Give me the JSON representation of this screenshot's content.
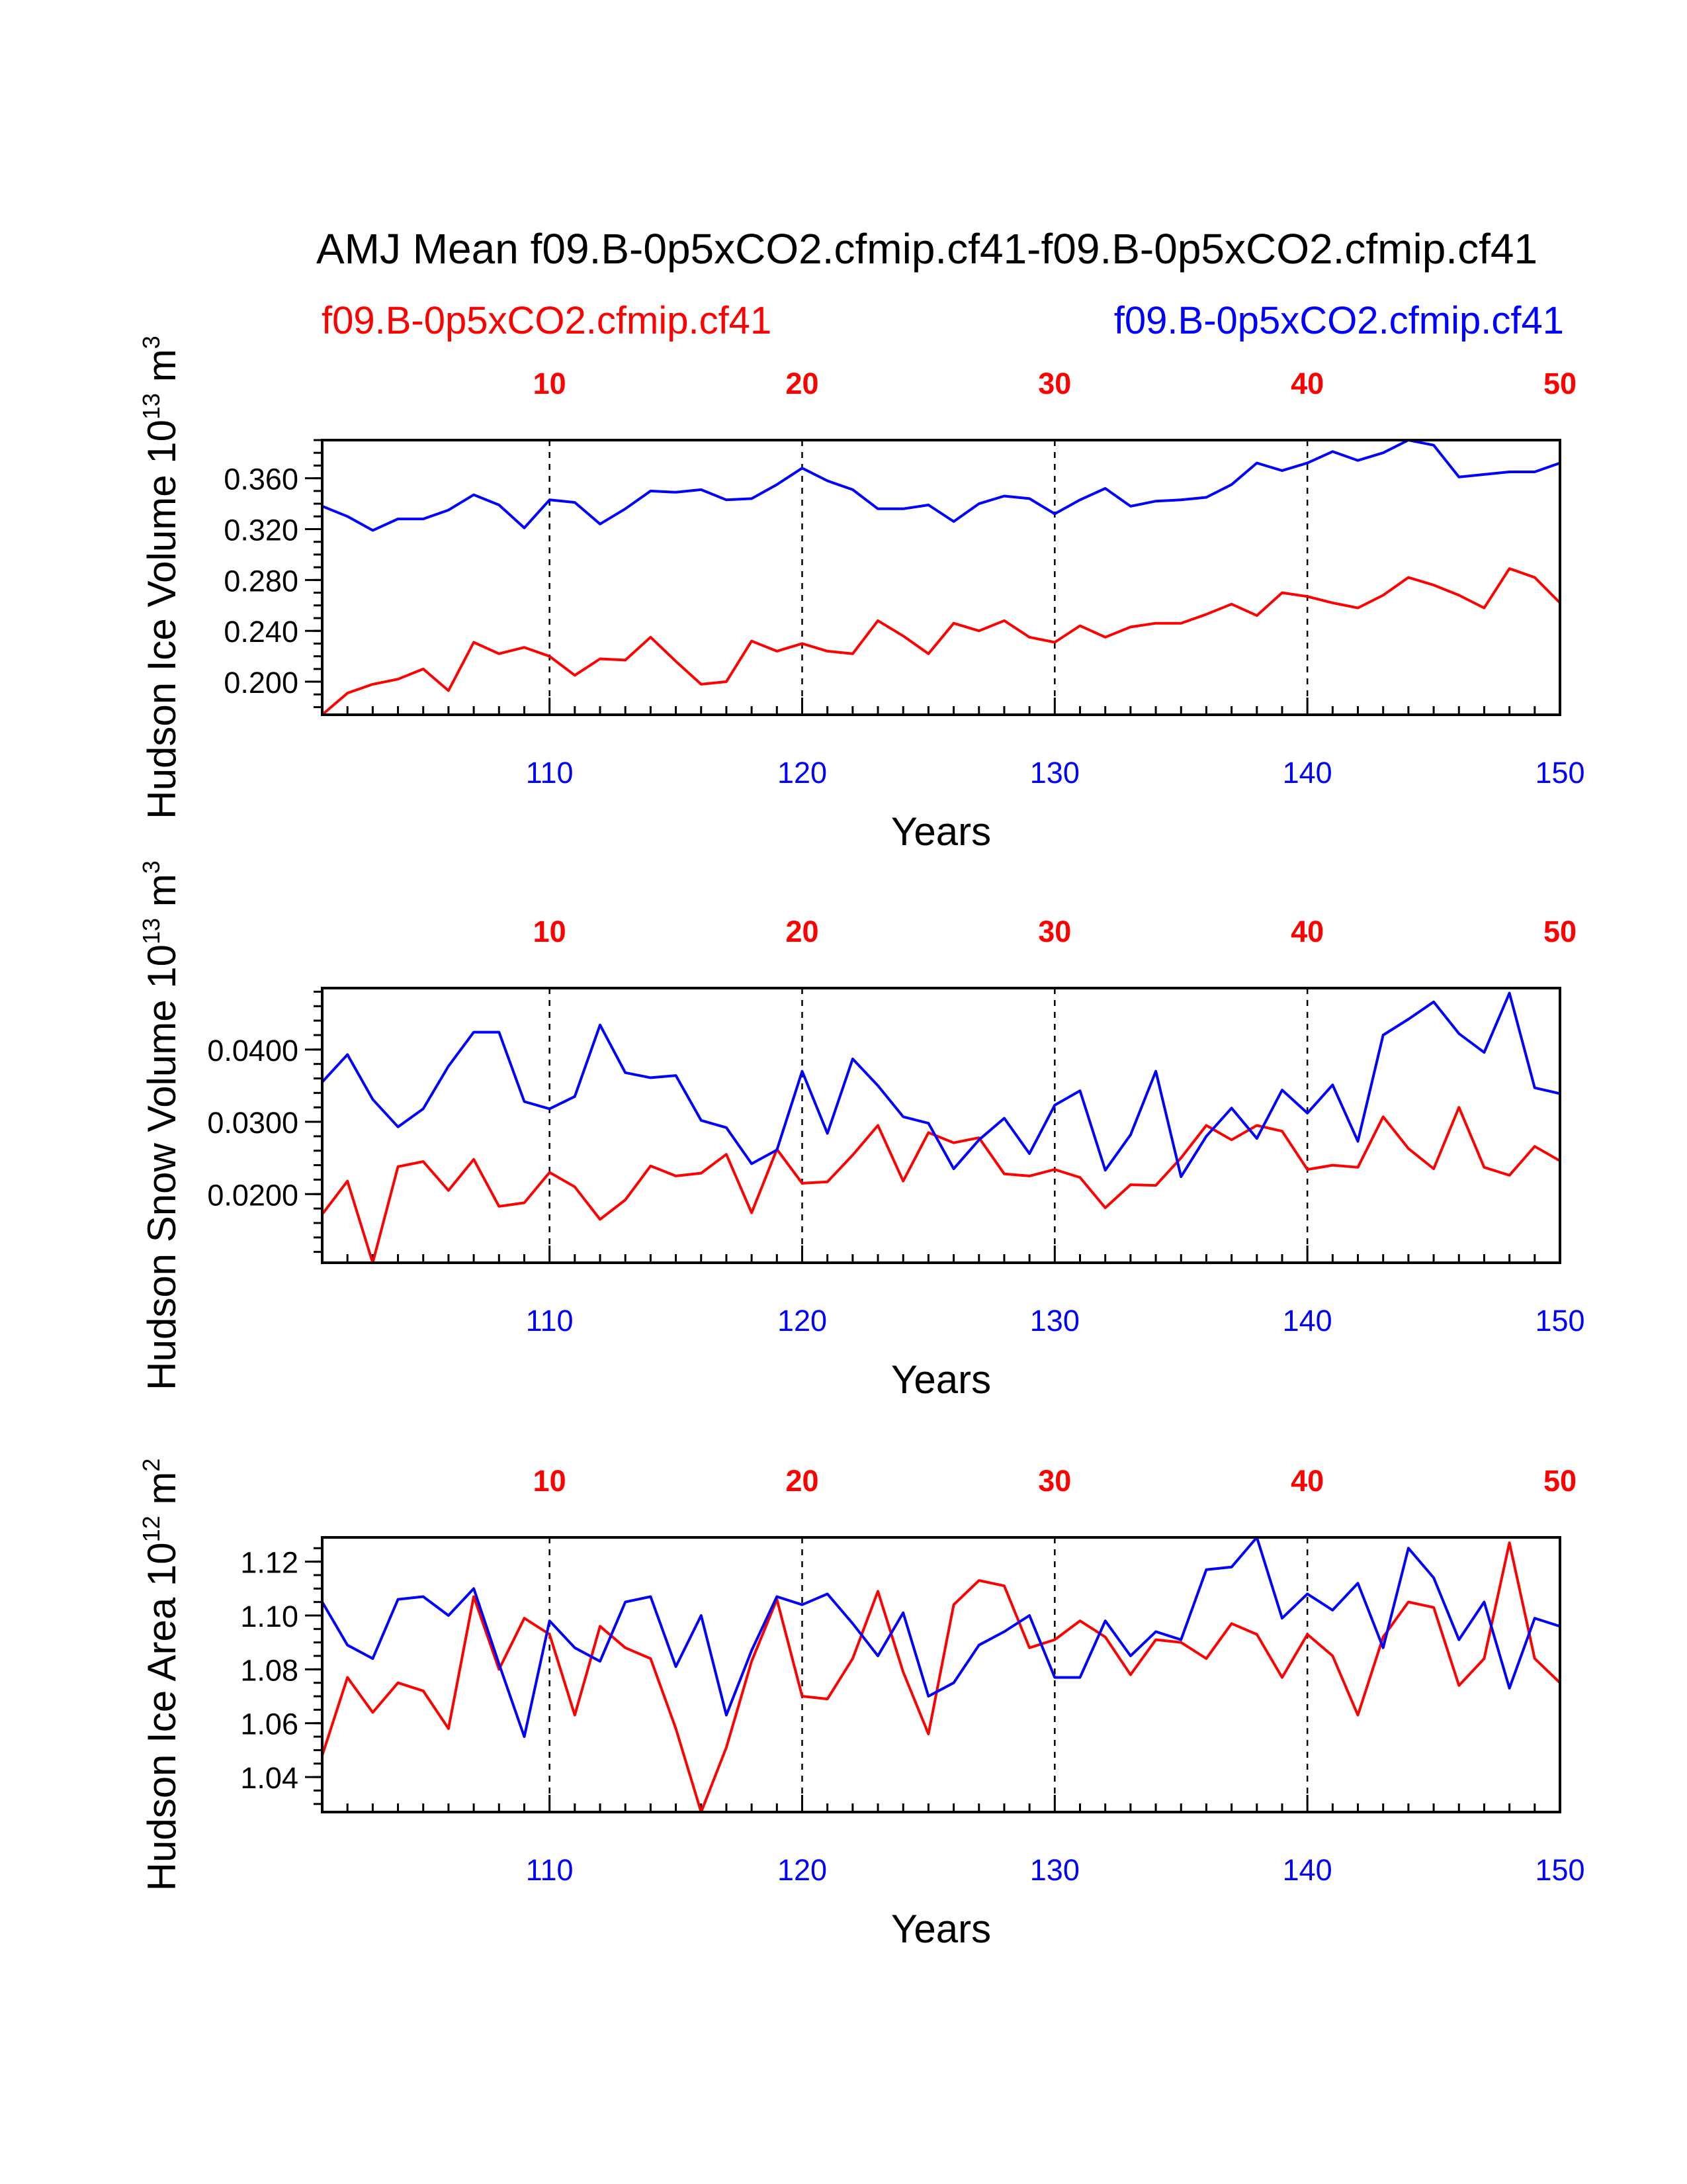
{
  "figure": {
    "title": "AMJ Mean f09.B-0p5xCO2.cfmip.cf41-f09.B-0p5xCO2.cfmip.cf41",
    "legend_left": "f09.B-0p5xCO2.cfmip.cf41",
    "legend_right": "f09.B-0p5xCO2.cfmip.cf41",
    "colors": {
      "red_series": "#ff0000",
      "blue_series": "#0000ff",
      "axis": "#000000"
    }
  },
  "chart_data": [
    {
      "type": "line",
      "id": "ice-volume",
      "ylabel": "Hudson Ice Volume 10",
      "ylabel_exp": "13",
      "ylabel_unit": " m",
      "ylabel_unit_exp": "3",
      "xlabel": "Years",
      "ylim": [
        0.174,
        0.39
      ],
      "y_ticks": [
        0.2,
        0.24,
        0.28,
        0.32,
        0.36
      ],
      "y_tick_labels": [
        "0.200",
        "0.240",
        "0.280",
        "0.320",
        "0.360"
      ],
      "y_minor_step": 0.01,
      "bottom_axis": {
        "range": [
          101,
          150
        ],
        "ticks": [
          110,
          120,
          130,
          140,
          150
        ]
      },
      "top_axis": {
        "range": [
          1,
          50
        ],
        "ticks": [
          10,
          20,
          30,
          40,
          50
        ]
      },
      "grid": "dashed vertical lines at 110, 120, 130, 140",
      "series": [
        {
          "name": "f09.B-0p5xCO2.cfmip.cf41",
          "color": "#ff0000",
          "axis": "top",
          "x_start": 1,
          "values": [
            0.174,
            0.191,
            0.198,
            0.202,
            0.21,
            0.193,
            0.231,
            0.222,
            0.227,
            0.22,
            0.205,
            0.218,
            0.217,
            0.235,
            0.216,
            0.198,
            0.2,
            0.232,
            0.224,
            0.23,
            0.224,
            0.222,
            0.248,
            0.236,
            0.222,
            0.246,
            0.24,
            0.248,
            0.235,
            0.231,
            0.244,
            0.235,
            0.243,
            0.246,
            0.246,
            0.253,
            0.261,
            0.252,
            0.27,
            0.267,
            0.262,
            0.258,
            0.268,
            0.282,
            0.276,
            0.268,
            0.258,
            0.289,
            0.282,
            0.262
          ]
        },
        {
          "name": "f09.B-0p5xCO2.cfmip.cf41",
          "color": "#0000ff",
          "axis": "bottom",
          "x_start": 101,
          "values": [
            0.338,
            0.33,
            0.319,
            0.328,
            0.328,
            0.335,
            0.347,
            0.339,
            0.321,
            0.343,
            0.341,
            0.324,
            0.336,
            0.35,
            0.349,
            0.351,
            0.343,
            0.344,
            0.355,
            0.368,
            0.358,
            0.351,
            0.336,
            0.336,
            0.339,
            0.326,
            0.34,
            0.346,
            0.344,
            0.332,
            0.343,
            0.352,
            0.338,
            0.342,
            0.343,
            0.345,
            0.355,
            0.372,
            0.366,
            0.372,
            0.381,
            0.374,
            0.38,
            0.39,
            0.386,
            0.361,
            0.363,
            0.365,
            0.365,
            0.372
          ]
        }
      ]
    },
    {
      "type": "line",
      "id": "snow-volume",
      "ylabel": "Hudson Snow Volume 10",
      "ylabel_exp": "13",
      "ylabel_unit": " m",
      "ylabel_unit_exp": "3",
      "xlabel": "Years",
      "ylim": [
        0.0105,
        0.0485
      ],
      "y_ticks": [
        0.02,
        0.03,
        0.04
      ],
      "y_tick_labels": [
        "0.0200",
        "0.0300",
        "0.0400"
      ],
      "y_minor_step": 0.002,
      "bottom_axis": {
        "range": [
          101,
          150
        ],
        "ticks": [
          110,
          120,
          130,
          140,
          150
        ]
      },
      "top_axis": {
        "range": [
          1,
          50
        ],
        "ticks": [
          10,
          20,
          30,
          40,
          50
        ]
      },
      "grid": "dashed vertical lines at 110, 120, 130, 140",
      "series": [
        {
          "name": "f09.B-0p5xCO2.cfmip.cf41",
          "color": "#ff0000",
          "axis": "top",
          "x_start": 1,
          "values": [
            0.0172,
            0.0218,
            0.0105,
            0.0238,
            0.0245,
            0.0205,
            0.0248,
            0.0183,
            0.0188,
            0.023,
            0.021,
            0.0165,
            0.0192,
            0.0239,
            0.0225,
            0.0229,
            0.0255,
            0.0174,
            0.0262,
            0.0215,
            0.0217,
            0.0254,
            0.0295,
            0.0218,
            0.0285,
            0.0271,
            0.0278,
            0.0228,
            0.0225,
            0.0234,
            0.0223,
            0.0181,
            0.0213,
            0.0212,
            0.025,
            0.0295,
            0.0275,
            0.0295,
            0.0287,
            0.0234,
            0.024,
            0.0237,
            0.0307,
            0.0263,
            0.0235,
            0.032,
            0.0237,
            0.0226,
            0.0266,
            0.0246
          ]
        },
        {
          "name": "f09.B-0p5xCO2.cfmip.cf41",
          "color": "#0000ff",
          "axis": "bottom",
          "x_start": 101,
          "values": [
            0.0355,
            0.0393,
            0.0331,
            0.0293,
            0.0318,
            0.0377,
            0.0424,
            0.0424,
            0.0328,
            0.0318,
            0.0335,
            0.0434,
            0.0368,
            0.0361,
            0.0364,
            0.0302,
            0.0292,
            0.0242,
            0.0261,
            0.037,
            0.0284,
            0.0387,
            0.035,
            0.0307,
            0.0298,
            0.0235,
            0.0275,
            0.0305,
            0.0256,
            0.0323,
            0.0343,
            0.0233,
            0.0282,
            0.037,
            0.0224,
            0.028,
            0.0319,
            0.0277,
            0.0344,
            0.0312,
            0.0351,
            0.0273,
            0.042,
            0.0442,
            0.0466,
            0.0422,
            0.0396,
            0.0478,
            0.0347,
            0.0339
          ]
        }
      ]
    },
    {
      "type": "line",
      "id": "ice-area",
      "ylabel": "Hudson Ice Area 10",
      "ylabel_exp": "12",
      "ylabel_unit": " m",
      "ylabel_unit_exp": "2",
      "xlabel": "Years",
      "ylim": [
        1.027,
        1.129
      ],
      "y_ticks": [
        1.04,
        1.06,
        1.08,
        1.1,
        1.12
      ],
      "y_tick_labels": [
        "1.04",
        "1.06",
        "1.08",
        "1.10",
        "1.12"
      ],
      "y_minor_step": 0.005,
      "bottom_axis": {
        "range": [
          101,
          150
        ],
        "ticks": [
          110,
          120,
          130,
          140,
          150
        ]
      },
      "top_axis": {
        "range": [
          1,
          50
        ],
        "ticks": [
          10,
          20,
          30,
          40,
          50
        ]
      },
      "grid": "dashed vertical lines at 110, 120, 130, 140",
      "series": [
        {
          "name": "f09.B-0p5xCO2.cfmip.cf41",
          "color": "#ff0000",
          "axis": "top",
          "x_start": 1,
          "values": [
            1.048,
            1.077,
            1.064,
            1.075,
            1.072,
            1.058,
            1.107,
            1.08,
            1.099,
            1.093,
            1.063,
            1.096,
            1.088,
            1.084,
            1.058,
            1.027,
            1.051,
            1.083,
            1.106,
            1.07,
            1.069,
            1.084,
            1.109,
            1.079,
            1.056,
            1.104,
            1.113,
            1.111,
            1.088,
            1.091,
            1.098,
            1.092,
            1.078,
            1.091,
            1.09,
            1.084,
            1.097,
            1.093,
            1.077,
            1.093,
            1.085,
            1.063,
            1.092,
            1.105,
            1.103,
            1.074,
            1.084,
            1.127,
            1.084,
            1.075
          ]
        },
        {
          "name": "f09.B-0p5xCO2.cfmip.cf41",
          "color": "#0000ff",
          "axis": "bottom",
          "x_start": 101,
          "values": [
            1.105,
            1.089,
            1.084,
            1.106,
            1.107,
            1.1,
            1.11,
            1.082,
            1.055,
            1.098,
            1.088,
            1.083,
            1.105,
            1.107,
            1.081,
            1.1,
            1.063,
            1.087,
            1.107,
            1.104,
            1.108,
            1.097,
            1.085,
            1.101,
            1.07,
            1.075,
            1.089,
            1.094,
            1.1,
            1.077,
            1.077,
            1.098,
            1.085,
            1.094,
            1.091,
            1.117,
            1.118,
            1.129,
            1.099,
            1.108,
            1.102,
            1.112,
            1.088,
            1.125,
            1.114,
            1.091,
            1.105,
            1.073,
            1.099,
            1.096
          ]
        }
      ]
    }
  ]
}
